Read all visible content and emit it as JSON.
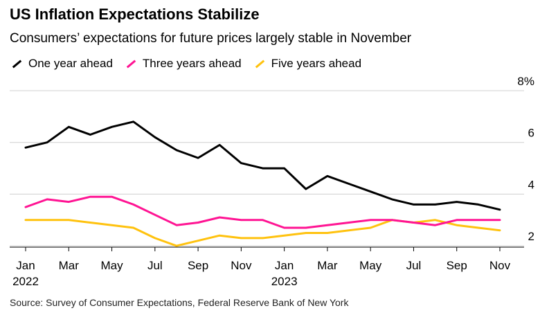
{
  "title": "US Inflation Expectations Stabilize",
  "subtitle": "Consumers’ expectations for future prices largely stable in November",
  "source": "Source: Survey of Consumer Expectations, Federal Reserve Bank of New York",
  "colors": {
    "one_year": "#000000",
    "three_years": "#ff1493",
    "five_years": "#ffc20e",
    "grid": "#cfcfcf"
  },
  "chart_data": {
    "type": "line",
    "title": "US Inflation Expectations Stabilize",
    "subtitle": "Consumers’ expectations for future prices largely stable in November",
    "x": [
      "2022-01",
      "2022-02",
      "2022-03",
      "2022-04",
      "2022-05",
      "2022-06",
      "2022-07",
      "2022-08",
      "2022-09",
      "2022-10",
      "2022-11",
      "2022-12",
      "2023-01",
      "2023-02",
      "2023-03",
      "2023-04",
      "2023-05",
      "2023-06",
      "2023-07",
      "2023-08",
      "2023-09",
      "2023-10",
      "2023-11"
    ],
    "x_tick_labels": [
      {
        "x": "2022-01",
        "label": "Jan",
        "year": "2022"
      },
      {
        "x": "2022-03",
        "label": "Mar"
      },
      {
        "x": "2022-05",
        "label": "May"
      },
      {
        "x": "2022-07",
        "label": "Jul"
      },
      {
        "x": "2022-09",
        "label": "Sep"
      },
      {
        "x": "2022-11",
        "label": "Nov"
      },
      {
        "x": "2023-01",
        "label": "Jan",
        "year": "2023"
      },
      {
        "x": "2023-03",
        "label": "Mar"
      },
      {
        "x": "2023-05",
        "label": "May"
      },
      {
        "x": "2023-07",
        "label": "Jul"
      },
      {
        "x": "2023-09",
        "label": "Sep"
      },
      {
        "x": "2023-11",
        "label": "Nov"
      }
    ],
    "y_ticks": [
      {
        "value": 2,
        "label": "2"
      },
      {
        "value": 4,
        "label": "4"
      },
      {
        "value": 6,
        "label": "6"
      },
      {
        "value": 8,
        "label": "8%"
      }
    ],
    "ylim": [
      1.95,
      8
    ],
    "grid": true,
    "legend_position": "top-left",
    "series": [
      {
        "name": "One year ahead",
        "color_key": "one_year",
        "values": [
          5.8,
          6.0,
          6.6,
          6.3,
          6.6,
          6.8,
          6.2,
          5.7,
          5.4,
          5.9,
          5.2,
          5.0,
          5.0,
          4.2,
          4.7,
          4.4,
          4.1,
          3.8,
          3.6,
          3.6,
          3.7,
          3.6,
          3.4
        ]
      },
      {
        "name": "Three years ahead",
        "color_key": "three_years",
        "values": [
          3.5,
          3.8,
          3.7,
          3.9,
          3.9,
          3.6,
          3.2,
          2.8,
          2.9,
          3.1,
          3.0,
          3.0,
          2.7,
          2.7,
          2.8,
          2.9,
          3.0,
          3.0,
          2.9,
          2.8,
          3.0,
          3.0,
          3.0
        ]
      },
      {
        "name": "Five years ahead",
        "color_key": "five_years",
        "values": [
          3.0,
          3.0,
          3.0,
          2.9,
          2.8,
          2.7,
          2.3,
          2.0,
          2.2,
          2.4,
          2.3,
          2.3,
          2.4,
          2.5,
          2.5,
          2.6,
          2.7,
          3.0,
          2.9,
          3.0,
          2.8,
          2.7,
          2.6
        ]
      }
    ]
  }
}
